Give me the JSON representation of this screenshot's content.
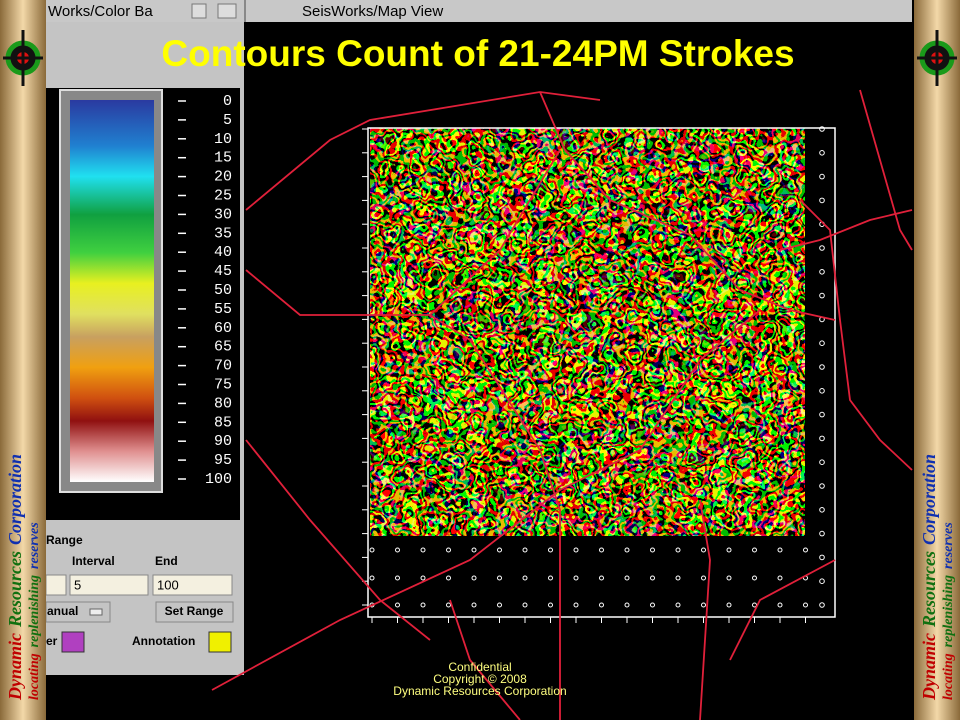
{
  "window_titles": {
    "left": "Works/Color Ba",
    "right": "SeisWorks/Map View"
  },
  "title": "Contours Count of 21-24PM Strokes",
  "colorbar": {
    "ticks": [
      0,
      5,
      10,
      15,
      20,
      25,
      30,
      35,
      40,
      45,
      50,
      55,
      60,
      65,
      70,
      75,
      80,
      85,
      90,
      95,
      100
    ]
  },
  "range_panel": {
    "heading": "Range",
    "interval_label": "Interval",
    "end_label": "End",
    "interval_value": "5",
    "end_value": "100",
    "mode_button": "anual",
    "set_range_button": "Set Range",
    "color_label": "er",
    "annotation_label": "Annotation"
  },
  "footer": {
    "line1": "Confidential",
    "line2": "Copyright © 2008",
    "line3": "Dynamic Resources Corporation"
  },
  "side_banner": {
    "company": [
      "Dynamic",
      "Resources",
      "Corporation"
    ],
    "tagline": [
      "locating",
      "replenishing",
      "reserves"
    ]
  }
}
